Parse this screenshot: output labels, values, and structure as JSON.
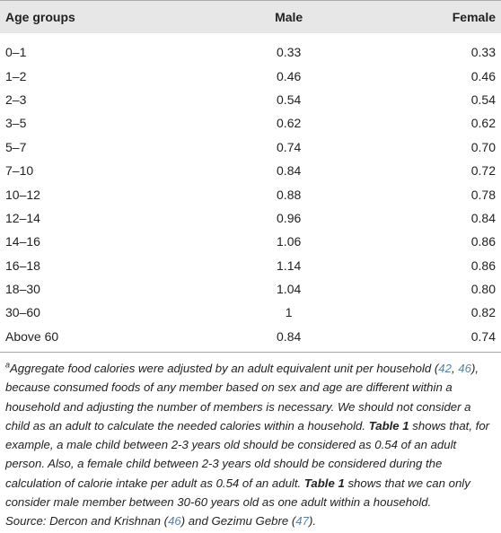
{
  "table": {
    "header": [
      "Age groups",
      "Male",
      "Female"
    ],
    "rows": [
      [
        "0–1",
        "0.33",
        "0.33"
      ],
      [
        "1–2",
        "0.46",
        "0.46"
      ],
      [
        "2–3",
        "0.54",
        "0.54"
      ],
      [
        "3–5",
        "0.62",
        "0.62"
      ],
      [
        "5–7",
        "0.74",
        "0.70"
      ],
      [
        "7–10",
        "0.84",
        "0.72"
      ],
      [
        "10–12",
        "0.88",
        "0.78"
      ],
      [
        "12–14",
        "0.96",
        "0.84"
      ],
      [
        "14–16",
        "1.06",
        "0.86"
      ],
      [
        "16–18",
        "1.14",
        "0.86"
      ],
      [
        "18–30",
        "1.04",
        "0.80"
      ],
      [
        "30–60",
        "1",
        "0.82"
      ],
      [
        "Above 60",
        "0.84",
        "0.74"
      ]
    ]
  },
  "footnote": {
    "segments": [
      "a",
      "Aggregate food calories were adjusted by an adult equivalent unit per household (",
      "42",
      ", ",
      "46",
      "), because consumed foods of any member based on sex and age are different within a household and adjusting the number of members is necessary. We should not consider a child as an adult to calculate the needed calories within a household. ",
      "Table 1",
      " shows that, for example, a male child between 2-3 years old should be considered as 0.54 of an adult person. Also, a female child between 2-3 years old should be considered during the calculation of calorie intake per adult as 0.54 of an adult. ",
      "Table 1",
      " shows that we can only consider male member between 30-60 years old as one adult within a household.",
      "Source: Dercon and Krishnan (",
      "46",
      ") and Gezimu Gebre (",
      "47",
      ")."
    ]
  }
}
